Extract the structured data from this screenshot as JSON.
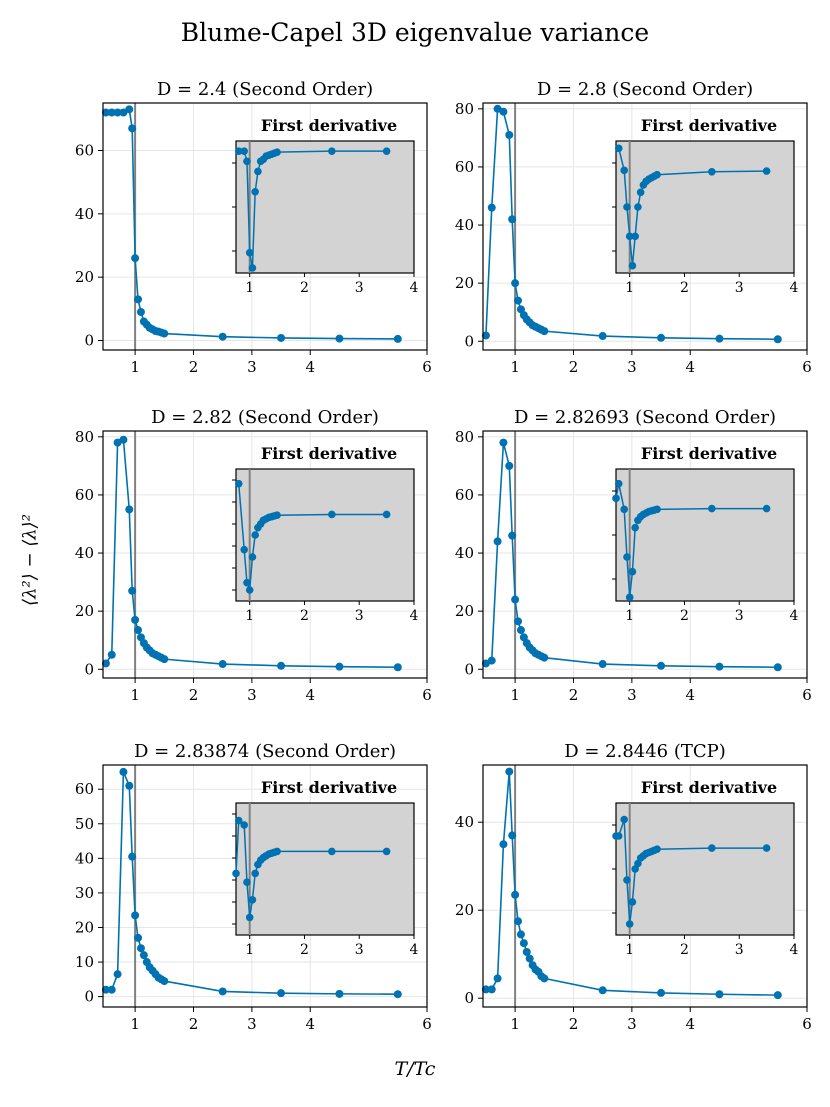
{
  "title": "Blume-Capel 3D eigenvalue variance",
  "xlabel": "T/T_c",
  "xlabel_display": "T/Tc",
  "ylabel": "⟨λ²⟩ − ⟨λ⟩²",
  "colors": {
    "series": "#0072b2",
    "inset_bg": "#d3d3d3",
    "grid": "#e6e6e6",
    "tc_line": "#808080"
  },
  "chart_data": [
    {
      "type": "line",
      "title": "D = 2.4 (Second Order)",
      "xlim": [
        0.45,
        6
      ],
      "ylim": [
        -3,
        75
      ],
      "xticks": [
        1,
        2,
        3,
        4,
        6
      ],
      "yticks": [
        0,
        20,
        40,
        60
      ],
      "tc": 1.0,
      "x": [
        0.5,
        0.6,
        0.7,
        0.8,
        0.9,
        0.95,
        1.0,
        1.05,
        1.1,
        1.15,
        1.2,
        1.25,
        1.3,
        1.35,
        1.4,
        1.45,
        1.5,
        2.5,
        3.5,
        4.5,
        5.5
      ],
      "y": [
        72,
        72,
        72,
        72,
        73,
        67,
        26,
        13,
        9,
        6,
        5,
        4,
        3.5,
        3,
        2.8,
        2.5,
        2.2,
        1.2,
        0.8,
        0.6,
        0.5
      ],
      "inset": {
        "title": "First derivative",
        "xlim": [
          0.75,
          4
        ],
        "xticks": [
          1,
          2,
          3,
          4
        ],
        "ylim": [
          -120,
          10
        ],
        "ytick_count": 3,
        "x": [
          0.8,
          0.9,
          0.95,
          1.0,
          1.05,
          1.1,
          1.15,
          1.2,
          1.25,
          1.3,
          1.35,
          1.4,
          1.45,
          1.5,
          2.5,
          3.5
        ],
        "y": [
          0,
          0,
          -10,
          -100,
          -115,
          -40,
          -20,
          -10,
          -8,
          -5,
          -4,
          -3,
          -2,
          -1,
          0,
          0
        ]
      }
    },
    {
      "type": "line",
      "title": "D = 2.8 (Second Order)",
      "xlim": [
        0.45,
        6
      ],
      "ylim": [
        -3,
        82
      ],
      "xticks": [
        1,
        2,
        3,
        4,
        6
      ],
      "yticks": [
        0,
        20,
        40,
        60,
        80
      ],
      "tc": 1.0,
      "x": [
        0.5,
        0.6,
        0.7,
        0.8,
        0.9,
        0.95,
        1.0,
        1.05,
        1.1,
        1.15,
        1.2,
        1.25,
        1.3,
        1.35,
        1.4,
        1.45,
        1.5,
        2.5,
        3.5,
        4.5,
        5.5
      ],
      "y": [
        2,
        46,
        80,
        79,
        71,
        42,
        20,
        14,
        11,
        9,
        7.5,
        6.5,
        5.5,
        5,
        4.5,
        4,
        3.5,
        1.8,
        1.2,
        0.9,
        0.7
      ],
      "inset": {
        "title": "First derivative",
        "xlim": [
          0.75,
          4
        ],
        "xticks": [
          1,
          2,
          3,
          4
        ],
        "ylim": [
          -140,
          40
        ],
        "ytick_count": 3,
        "x": [
          0.8,
          0.9,
          0.95,
          1.0,
          1.05,
          1.1,
          1.15,
          1.2,
          1.25,
          1.3,
          1.35,
          1.4,
          1.45,
          1.5,
          2.5,
          3.5
        ],
        "y": [
          30,
          0,
          -50,
          -90,
          -130,
          -90,
          -50,
          -30,
          -20,
          -15,
          -12,
          -10,
          -8,
          -6,
          -2,
          -1
        ]
      }
    },
    {
      "type": "line",
      "title": "D = 2.82 (Second Order)",
      "xlim": [
        0.45,
        6
      ],
      "ylim": [
        -3,
        82
      ],
      "xticks": [
        1,
        2,
        3,
        4,
        6
      ],
      "yticks": [
        0,
        20,
        40,
        60,
        80
      ],
      "tc": 1.0,
      "x": [
        0.5,
        0.6,
        0.7,
        0.8,
        0.9,
        0.95,
        1.0,
        1.05,
        1.1,
        1.15,
        1.2,
        1.25,
        1.3,
        1.35,
        1.4,
        1.45,
        1.5,
        2.5,
        3.5,
        4.5,
        5.5
      ],
      "y": [
        2,
        5,
        78,
        79,
        55,
        27,
        17,
        13.5,
        11,
        9,
        7.5,
        6.5,
        5.5,
        5,
        4.5,
        4,
        3.5,
        1.8,
        1.2,
        0.9,
        0.7
      ],
      "inset": {
        "title": "First derivative",
        "xlim": [
          0.75,
          4
        ],
        "xticks": [
          1,
          2,
          3,
          4
        ],
        "ylim": [
          -160,
          20
        ],
        "ytick_count": 6,
        "x": [
          0.8,
          0.9,
          0.95,
          1.0,
          1.05,
          1.1,
          1.15,
          1.2,
          1.25,
          1.3,
          1.35,
          1.4,
          1.45,
          1.5,
          2.5,
          3.5
        ],
        "y": [
          0,
          -90,
          -135,
          -145,
          -100,
          -70,
          -60,
          -55,
          -50,
          -48,
          -46,
          -45,
          -44,
          -43,
          -42,
          -42
        ]
      }
    },
    {
      "type": "line",
      "title": "D = 2.82693 (Second Order)",
      "xlim": [
        0.45,
        6
      ],
      "ylim": [
        -3,
        82
      ],
      "xticks": [
        1,
        2,
        3,
        4,
        6
      ],
      "yticks": [
        0,
        20,
        40,
        60,
        80
      ],
      "tc": 1.0,
      "x": [
        0.5,
        0.6,
        0.7,
        0.8,
        0.9,
        0.95,
        1.0,
        1.05,
        1.1,
        1.15,
        1.2,
        1.25,
        1.3,
        1.35,
        1.4,
        1.45,
        1.5,
        2.5,
        3.5,
        4.5,
        5.5
      ],
      "y": [
        2,
        3,
        44,
        78,
        70,
        46,
        24,
        16.5,
        13.5,
        11,
        9,
        7.5,
        6.5,
        5.5,
        5,
        4.5,
        4,
        1.8,
        1.2,
        0.9,
        0.7
      ],
      "inset": {
        "title": "First derivative",
        "xlim": [
          0.75,
          4
        ],
        "xticks": [
          1,
          2,
          3,
          4
        ],
        "ylim": [
          -160,
          20
        ],
        "ytick_count": 3,
        "x": [
          0.75,
          0.8,
          0.9,
          0.95,
          1.0,
          1.05,
          1.1,
          1.15,
          1.2,
          1.25,
          1.3,
          1.35,
          1.4,
          1.45,
          1.5,
          2.5,
          3.5
        ],
        "y": [
          -20,
          0,
          -35,
          -100,
          -155,
          -120,
          -60,
          -50,
          -45,
          -42,
          -40,
          -38,
          -37,
          -36,
          -35,
          -34,
          -34
        ]
      }
    },
    {
      "type": "line",
      "title": "D = 2.83874 (Second Order)",
      "xlim": [
        0.45,
        6
      ],
      "ylim": [
        -3,
        67
      ],
      "xticks": [
        1,
        2,
        3,
        4,
        6
      ],
      "yticks": [
        0,
        10,
        20,
        30,
        40,
        50,
        60
      ],
      "tc": 1.0,
      "x": [
        0.5,
        0.6,
        0.7,
        0.8,
        0.9,
        0.95,
        1.0,
        1.05,
        1.1,
        1.15,
        1.2,
        1.25,
        1.3,
        1.35,
        1.4,
        1.45,
        1.5,
        2.5,
        3.5,
        4.5,
        5.5
      ],
      "y": [
        2,
        2,
        6.5,
        65,
        61,
        40.5,
        23.5,
        17,
        14,
        12,
        10,
        8.5,
        7.5,
        6.5,
        5.5,
        5,
        4.5,
        1.5,
        1,
        0.8,
        0.7
      ],
      "inset": {
        "title": "First derivative",
        "xlim": [
          0.75,
          4
        ],
        "xticks": [
          1,
          2,
          3,
          4
        ],
        "ylim": [
          -130,
          20
        ],
        "ytick_count": 6,
        "x": [
          0.75,
          0.8,
          0.9,
          0.95,
          1.0,
          1.05,
          1.1,
          1.15,
          1.2,
          1.25,
          1.3,
          1.35,
          1.4,
          1.45,
          1.5,
          2.5,
          3.5
        ],
        "y": [
          -60,
          0,
          -5,
          -70,
          -110,
          -90,
          -60,
          -50,
          -45,
          -42,
          -40,
          -38,
          -37,
          -36,
          -35,
          -35,
          -35
        ]
      }
    },
    {
      "type": "line",
      "title": "D = 2.8446 (TCP)",
      "xlim": [
        0.45,
        6
      ],
      "ylim": [
        -2,
        53
      ],
      "xticks": [
        1,
        2,
        3,
        4,
        6
      ],
      "yticks": [
        0,
        20,
        40
      ],
      "tc": 1.0,
      "x": [
        0.5,
        0.6,
        0.7,
        0.8,
        0.9,
        0.95,
        1.0,
        1.05,
        1.1,
        1.15,
        1.2,
        1.25,
        1.3,
        1.35,
        1.4,
        1.45,
        1.5,
        2.5,
        3.5,
        4.5,
        5.5
      ],
      "y": [
        2,
        2,
        4.5,
        35,
        51.5,
        37,
        23.5,
        17.5,
        14.5,
        12.5,
        10.5,
        9,
        7.5,
        6.5,
        6,
        5,
        4.5,
        1.8,
        1.2,
        0.9,
        0.7
      ],
      "inset": {
        "title": "First derivative",
        "xlim": [
          0.75,
          4
        ],
        "xticks": [
          1,
          2,
          3,
          4
        ],
        "ylim": [
          -110,
          10
        ],
        "ytick_count": 3,
        "x": [
          0.75,
          0.8,
          0.9,
          0.95,
          1.0,
          1.05,
          1.1,
          1.15,
          1.2,
          1.25,
          1.3,
          1.35,
          1.4,
          1.45,
          1.5,
          2.5,
          3.5
        ],
        "y": [
          -20,
          -20,
          -5,
          -60,
          -100,
          -80,
          -50,
          -45,
          -40,
          -38,
          -36,
          -35,
          -34,
          -33,
          -32,
          -31,
          -31
        ]
      }
    }
  ]
}
